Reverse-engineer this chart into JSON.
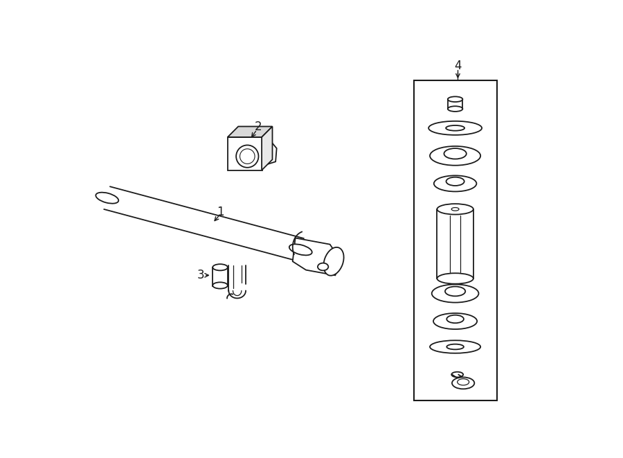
{
  "bg_color": "#ffffff",
  "line_color": "#1a1a1a",
  "fig_width": 9.0,
  "fig_height": 6.61,
  "dpi": 100,
  "label_fontsize": 12
}
